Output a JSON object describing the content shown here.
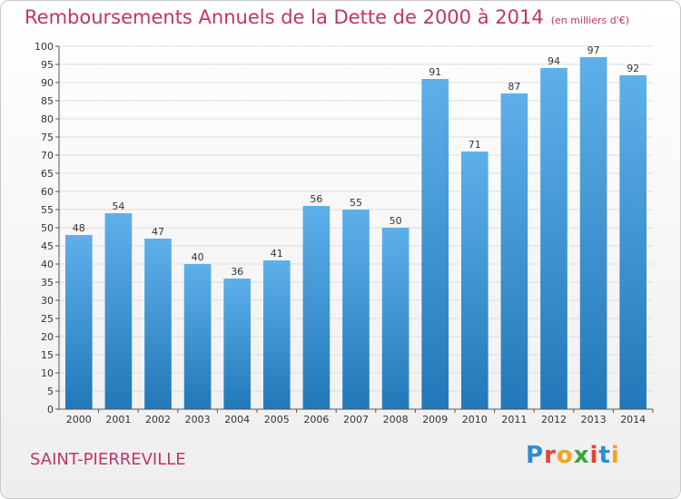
{
  "header": {
    "title": "Remboursements Annuels de la Dette de 2000 à 2014",
    "unit": "(en milliers d'€)"
  },
  "footer": {
    "commune": "SAINT-PIERREVILLE",
    "logo_letters": [
      "P",
      "r",
      "o",
      "x",
      "i",
      "t",
      "i"
    ]
  },
  "colors": {
    "title": "#c2336a",
    "bar_top": "#5eb0ea",
    "bar_bottom": "#2278b8",
    "grid": "#dddddd"
  },
  "chart_data": {
    "type": "bar",
    "categories": [
      "2000",
      "2001",
      "2002",
      "2003",
      "2004",
      "2005",
      "2006",
      "2007",
      "2008",
      "2009",
      "2010",
      "2011",
      "2012",
      "2013",
      "2014"
    ],
    "values": [
      48,
      54,
      47,
      40,
      36,
      41,
      56,
      55,
      50,
      91,
      71,
      87,
      94,
      97,
      92
    ],
    "title": "Remboursements Annuels de la Dette de 2000 à 2014",
    "unit": "(en milliers d'€)",
    "ylim": [
      0,
      100
    ],
    "ytick_step": 5,
    "grid": true,
    "data_labels": true
  }
}
